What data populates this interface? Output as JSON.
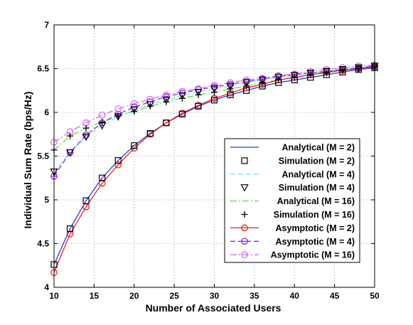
{
  "chart_data": {
    "type": "line",
    "title": "",
    "xlabel": "Number of Associated Users",
    "ylabel": "Individual Sum Rate (bps/Hz)",
    "xlim": [
      10,
      50
    ],
    "ylim": [
      4,
      7
    ],
    "xticks": [
      10,
      15,
      20,
      25,
      30,
      35,
      40,
      45,
      50
    ],
    "yticks": [
      4,
      4.5,
      5,
      5.5,
      6,
      6.5,
      7
    ],
    "xtick_labels": [
      "10",
      "15",
      "20",
      "25",
      "30",
      "35",
      "40",
      "45",
      "50"
    ],
    "ytick_labels": [
      "4",
      "4.5",
      "5",
      "5.5",
      "6",
      "6.5",
      "7"
    ],
    "grid": true,
    "legend_position": "right",
    "x": [
      10,
      12,
      14,
      16,
      18,
      20,
      22,
      24,
      26,
      28,
      30,
      32,
      34,
      36,
      38,
      40,
      42,
      44,
      46,
      48,
      50
    ],
    "series": [
      {
        "name": "Analytical (M = 2)",
        "style": "line",
        "color": "#1f3fd6",
        "dash": "solid",
        "marker": "none",
        "values": [
          4.26,
          4.67,
          4.99,
          5.25,
          5.45,
          5.62,
          5.76,
          5.88,
          5.98,
          6.07,
          6.14,
          6.2,
          6.25,
          6.3,
          6.34,
          6.37,
          6.4,
          6.43,
          6.46,
          6.49,
          6.51
        ]
      },
      {
        "name": "Simulation (M = 2)",
        "style": "marker",
        "color": "#000000",
        "dash": "none",
        "marker": "square",
        "values": [
          4.26,
          4.67,
          4.99,
          5.25,
          5.45,
          5.62,
          5.76,
          5.88,
          5.98,
          6.07,
          6.14,
          6.2,
          6.25,
          6.3,
          6.34,
          6.37,
          6.4,
          6.43,
          6.46,
          6.49,
          6.51
        ]
      },
      {
        "name": "Analytical (M = 4)",
        "style": "line",
        "color": "#7fe3ef",
        "dash": "dashed",
        "marker": "none",
        "values": [
          5.32,
          5.54,
          5.72,
          5.85,
          5.95,
          6.03,
          6.09,
          6.14,
          6.19,
          6.23,
          6.27,
          6.3,
          6.34,
          6.37,
          6.4,
          6.42,
          6.45,
          6.47,
          6.49,
          6.51,
          6.53
        ]
      },
      {
        "name": "Simulation (M = 4)",
        "style": "marker",
        "color": "#000000",
        "dash": "none",
        "marker": "triangle-down",
        "values": [
          5.32,
          5.54,
          5.72,
          5.85,
          5.95,
          6.03,
          6.09,
          6.14,
          6.19,
          6.23,
          6.27,
          6.3,
          6.34,
          6.37,
          6.4,
          6.42,
          6.45,
          6.47,
          6.49,
          6.51,
          6.53
        ]
      },
      {
        "name": "Analytical (M = 16)",
        "style": "line",
        "color": "#66dd33",
        "dash": "dashdot",
        "marker": "none",
        "values": [
          5.57,
          5.73,
          5.82,
          5.89,
          5.96,
          6.01,
          6.07,
          6.12,
          6.16,
          6.2,
          6.23,
          6.27,
          6.3,
          6.34,
          6.37,
          6.4,
          6.43,
          6.45,
          6.48,
          6.5,
          6.52
        ]
      },
      {
        "name": "Simulation (M = 16)",
        "style": "marker",
        "color": "#000000",
        "dash": "none",
        "marker": "plus",
        "values": [
          5.57,
          5.73,
          5.82,
          5.89,
          5.96,
          6.01,
          6.07,
          6.12,
          6.16,
          6.2,
          6.23,
          6.27,
          6.3,
          6.34,
          6.37,
          6.4,
          6.43,
          6.45,
          6.48,
          6.5,
          6.52
        ]
      },
      {
        "name": "Asymptotic (M = 2)",
        "style": "line+marker",
        "color": "#e8231f",
        "dash": "solid",
        "marker": "circle",
        "values": [
          4.17,
          4.61,
          4.92,
          5.19,
          5.4,
          5.59,
          5.75,
          5.88,
          5.99,
          6.08,
          6.16,
          6.22,
          6.28,
          6.32,
          6.37,
          6.4,
          6.43,
          6.46,
          6.48,
          6.5,
          6.52
        ]
      },
      {
        "name": "Asymptotic (M = 4)",
        "style": "line+marker",
        "color": "#8a2be2",
        "dash": "dashed",
        "marker": "circle-bar",
        "values": [
          5.27,
          5.54,
          5.74,
          5.88,
          5.98,
          6.06,
          6.12,
          6.18,
          6.22,
          6.26,
          6.29,
          6.32,
          6.35,
          6.38,
          6.41,
          6.43,
          6.45,
          6.47,
          6.49,
          6.51,
          6.53
        ]
      },
      {
        "name": "Asymptotic (M = 16)",
        "style": "line+marker",
        "color": "#d36cf5",
        "dash": "dashdot",
        "marker": "circle",
        "values": [
          5.66,
          5.78,
          5.88,
          5.97,
          6.04,
          6.1,
          6.15,
          6.2,
          6.24,
          6.27,
          6.31,
          6.34,
          6.37,
          6.39,
          6.42,
          6.44,
          6.47,
          6.49,
          6.51,
          6.53,
          6.54
        ]
      }
    ]
  }
}
